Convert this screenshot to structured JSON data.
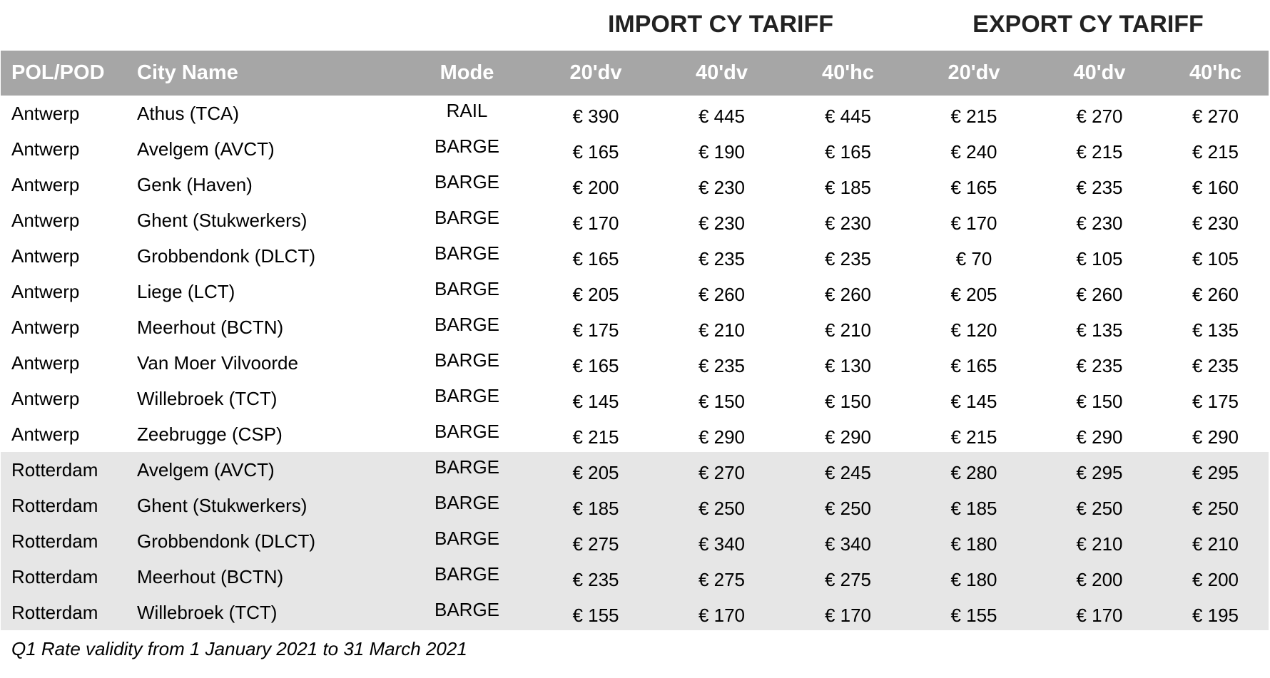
{
  "headers": {
    "import_group": "IMPORT CY TARIFF",
    "export_group": "EXPORT CY TARIFF",
    "columns": [
      "POL/POD",
      "City Name",
      "Mode",
      "20'dv",
      "40'dv",
      "40'hc",
      "20'dv",
      "40'dv",
      "40'hc"
    ]
  },
  "rows": [
    {
      "pol": "Antwerp",
      "city": "Athus (TCA)",
      "mode": "RAIL",
      "imp": [
        "€ 390",
        "€ 445",
        "€ 445"
      ],
      "exp": [
        "€ 215",
        "€ 270",
        "€ 270"
      ]
    },
    {
      "pol": "Antwerp",
      "city": "Avelgem (AVCT)",
      "mode": "BARGE",
      "imp": [
        "€ 165",
        "€ 190",
        "€ 165"
      ],
      "exp": [
        "€ 240",
        "€ 215",
        "€ 215"
      ]
    },
    {
      "pol": "Antwerp",
      "city": "Genk (Haven)",
      "mode": "BARGE",
      "imp": [
        "€ 200",
        "€ 230",
        "€ 185"
      ],
      "exp": [
        "€ 165",
        "€ 235",
        "€ 160"
      ]
    },
    {
      "pol": "Antwerp",
      "city": "Ghent (Stukwerkers)",
      "mode": "BARGE",
      "imp": [
        "€ 170",
        "€ 230",
        "€ 230"
      ],
      "exp": [
        "€ 170",
        "€ 230",
        "€ 230"
      ]
    },
    {
      "pol": "Antwerp",
      "city": "Grobbendonk (DLCT)",
      "mode": "BARGE",
      "imp": [
        "€ 165",
        "€ 235",
        "€ 235"
      ],
      "exp": [
        "€ 70",
        "€ 105",
        "€ 105"
      ]
    },
    {
      "pol": "Antwerp",
      "city": "Liege (LCT)",
      "mode": "BARGE",
      "imp": [
        "€ 205",
        "€ 260",
        "€ 260"
      ],
      "exp": [
        "€ 205",
        "€ 260",
        "€ 260"
      ]
    },
    {
      "pol": "Antwerp",
      "city": "Meerhout (BCTN)",
      "mode": "BARGE",
      "imp": [
        "€ 175",
        "€ 210",
        "€ 210"
      ],
      "exp": [
        "€ 120",
        "€ 135",
        "€ 135"
      ]
    },
    {
      "pol": "Antwerp",
      "city": "Van Moer Vilvoorde",
      "mode": "BARGE",
      "imp": [
        "€ 165",
        "€ 235",
        "€ 130"
      ],
      "exp": [
        "€ 165",
        "€ 235",
        "€ 235"
      ]
    },
    {
      "pol": "Antwerp",
      "city": "Willebroek (TCT)",
      "mode": "BARGE",
      "imp": [
        "€ 145",
        "€ 150",
        "€ 150"
      ],
      "exp": [
        "€ 145",
        "€ 150",
        "€ 175"
      ]
    },
    {
      "pol": "Antwerp",
      "city": "Zeebrugge (CSP)",
      "mode": "BARGE",
      "imp": [
        "€ 215",
        "€ 290",
        "€ 290"
      ],
      "exp": [
        "€ 215",
        "€ 290",
        "€ 290"
      ]
    },
    {
      "pol": "Rotterdam",
      "city": "Avelgem (AVCT)",
      "mode": "BARGE",
      "imp": [
        "€ 205",
        "€ 270",
        "€ 245"
      ],
      "exp": [
        "€ 280",
        "€ 295",
        "€ 295"
      ]
    },
    {
      "pol": "Rotterdam",
      "city": "Ghent (Stukwerkers)",
      "mode": "BARGE",
      "imp": [
        "€ 185",
        "€ 250",
        "€ 250"
      ],
      "exp": [
        "€ 185",
        "€ 250",
        "€ 250"
      ]
    },
    {
      "pol": "Rotterdam",
      "city": "Grobbendonk (DLCT)",
      "mode": "BARGE",
      "imp": [
        "€ 275",
        "€ 340",
        "€ 340"
      ],
      "exp": [
        "€ 180",
        "€ 210",
        "€ 210"
      ]
    },
    {
      "pol": "Rotterdam",
      "city": "Meerhout (BCTN)",
      "mode": "BARGE",
      "imp": [
        "€ 235",
        "€ 275",
        "€ 275"
      ],
      "exp": [
        "€ 180",
        "€ 200",
        "€ 200"
      ]
    },
    {
      "pol": "Rotterdam",
      "city": "Willebroek (TCT)",
      "mode": "BARGE",
      "imp": [
        "€ 155",
        "€ 170",
        "€ 170"
      ],
      "exp": [
        "€ 155",
        "€ 170",
        "€ 195"
      ]
    }
  ],
  "footnote": "Q1 Rate validity from 1 January 2021 to 31 March 2021",
  "colors": {
    "header_bg": "#a6a6a6",
    "header_text": "#ffffff",
    "rotterdam_row_bg": "#e6e6e6",
    "group_title_text": "#222222"
  }
}
